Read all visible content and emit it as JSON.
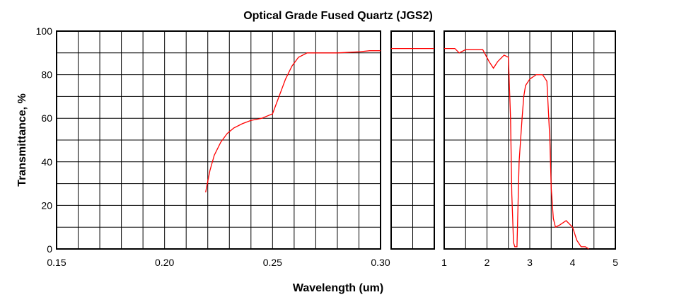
{
  "chart_data": {
    "type": "line",
    "title": "Optical Grade Fused Quartz  (JGS2)",
    "xlabel": "Wavelength (um)",
    "ylabel": "Transmittance, %",
    "ylim": [
      0,
      100
    ],
    "yticks": [
      "0",
      "20",
      "40",
      "60",
      "80",
      "100"
    ],
    "grid": true,
    "panels": [
      {
        "xlim": [
          0.15,
          0.3
        ],
        "xticks": [
          {
            "value": 0.15,
            "label": "0.15"
          },
          {
            "value": 0.2,
            "label": "0.20"
          },
          {
            "value": 0.25,
            "label": "0.25"
          },
          {
            "value": 0.3,
            "label": "0.30"
          }
        ],
        "series": [
          {
            "color": "#ff0000",
            "x": [
              0.219,
              0.221,
              0.223,
              0.226,
              0.229,
              0.232,
              0.236,
              0.24,
              0.245,
              0.25,
              0.253,
              0.256,
              0.259,
              0.262,
              0.266,
              0.27,
              0.28,
              0.29,
              0.295,
              0.3
            ],
            "y": [
              26,
              36,
              43,
              49,
              53,
              55.5,
              57.5,
              59,
              60,
              62,
              70,
              78,
              84,
              88,
              90,
              90,
              90,
              90.5,
              91,
              91
            ]
          }
        ]
      },
      {
        "xlim": [
          0.3,
          0.4
        ],
        "xticks": [],
        "series": [
          {
            "color": "#ff0000",
            "x": [
              0.3,
              0.4
            ],
            "y": [
              92,
              92
            ]
          }
        ]
      },
      {
        "xlim": [
          1,
          5
        ],
        "xticks": [
          {
            "value": 1,
            "label": "1"
          },
          {
            "value": 2,
            "label": "2"
          },
          {
            "value": 3,
            "label": "3"
          },
          {
            "value": 4,
            "label": "4"
          },
          {
            "value": 5,
            "label": "5"
          }
        ],
        "series": [
          {
            "color": "#ff0000",
            "x": [
              1.0,
              1.25,
              1.35,
              1.5,
              1.9,
              2.05,
              2.15,
              2.25,
              2.4,
              2.5,
              2.55,
              2.58,
              2.62,
              2.65,
              2.7,
              2.75,
              2.82,
              2.86,
              2.9,
              3.0,
              3.15,
              3.3,
              3.4,
              3.47,
              3.5,
              3.55,
              3.6,
              3.7,
              3.85,
              4.0,
              4.1,
              4.2,
              4.3,
              4.38
            ],
            "y": [
              92,
              92,
              90,
              91.5,
              91.5,
              86,
              83,
              86,
              89,
              88,
              60,
              25,
              3,
              1,
              1,
              40,
              60,
              70,
              75,
              78,
              80,
              80,
              77,
              50,
              28,
              14,
              10,
              11,
              13,
              10,
              4,
              1,
              1,
              0
            ]
          }
        ]
      }
    ]
  }
}
